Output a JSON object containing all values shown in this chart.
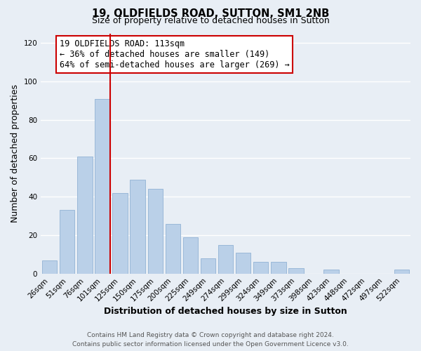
{
  "title_line1": "19, OLDFIELDS ROAD, SUTTON, SM1 2NB",
  "title_line2": "Size of property relative to detached houses in Sutton",
  "xlabel": "Distribution of detached houses by size in Sutton",
  "ylabel": "Number of detached properties",
  "categories": [
    "26sqm",
    "51sqm",
    "76sqm",
    "101sqm",
    "125sqm",
    "150sqm",
    "175sqm",
    "200sqm",
    "225sqm",
    "249sqm",
    "274sqm",
    "299sqm",
    "324sqm",
    "349sqm",
    "373sqm",
    "398sqm",
    "423sqm",
    "448sqm",
    "472sqm",
    "497sqm",
    "522sqm"
  ],
  "values": [
    7,
    33,
    61,
    91,
    42,
    49,
    44,
    26,
    19,
    8,
    15,
    11,
    6,
    6,
    3,
    0,
    2,
    0,
    0,
    0,
    2
  ],
  "bar_color": "#bad0e8",
  "bar_edge_color": "#9ab8d8",
  "highlight_line_color": "#cc0000",
  "highlight_line_index": 3,
  "ylim": [
    0,
    125
  ],
  "yticks": [
    0,
    20,
    40,
    60,
    80,
    100,
    120
  ],
  "annotation_box_title": "19 OLDFIELDS ROAD: 113sqm",
  "annotation_line1": "← 36% of detached houses are smaller (149)",
  "annotation_line2": "64% of semi-detached houses are larger (269) →",
  "annotation_box_edge_color": "#cc0000",
  "footer_line1": "Contains HM Land Registry data © Crown copyright and database right 2024.",
  "footer_line2": "Contains public sector information licensed under the Open Government Licence v3.0.",
  "background_color": "#e8eef5",
  "plot_background_color": "#e8eef5",
  "grid_color": "#ffffff",
  "title_fontsize": 10.5,
  "subtitle_fontsize": 9,
  "axis_label_fontsize": 9,
  "tick_fontsize": 7.5,
  "footer_fontsize": 6.5,
  "annotation_fontsize": 8.5
}
